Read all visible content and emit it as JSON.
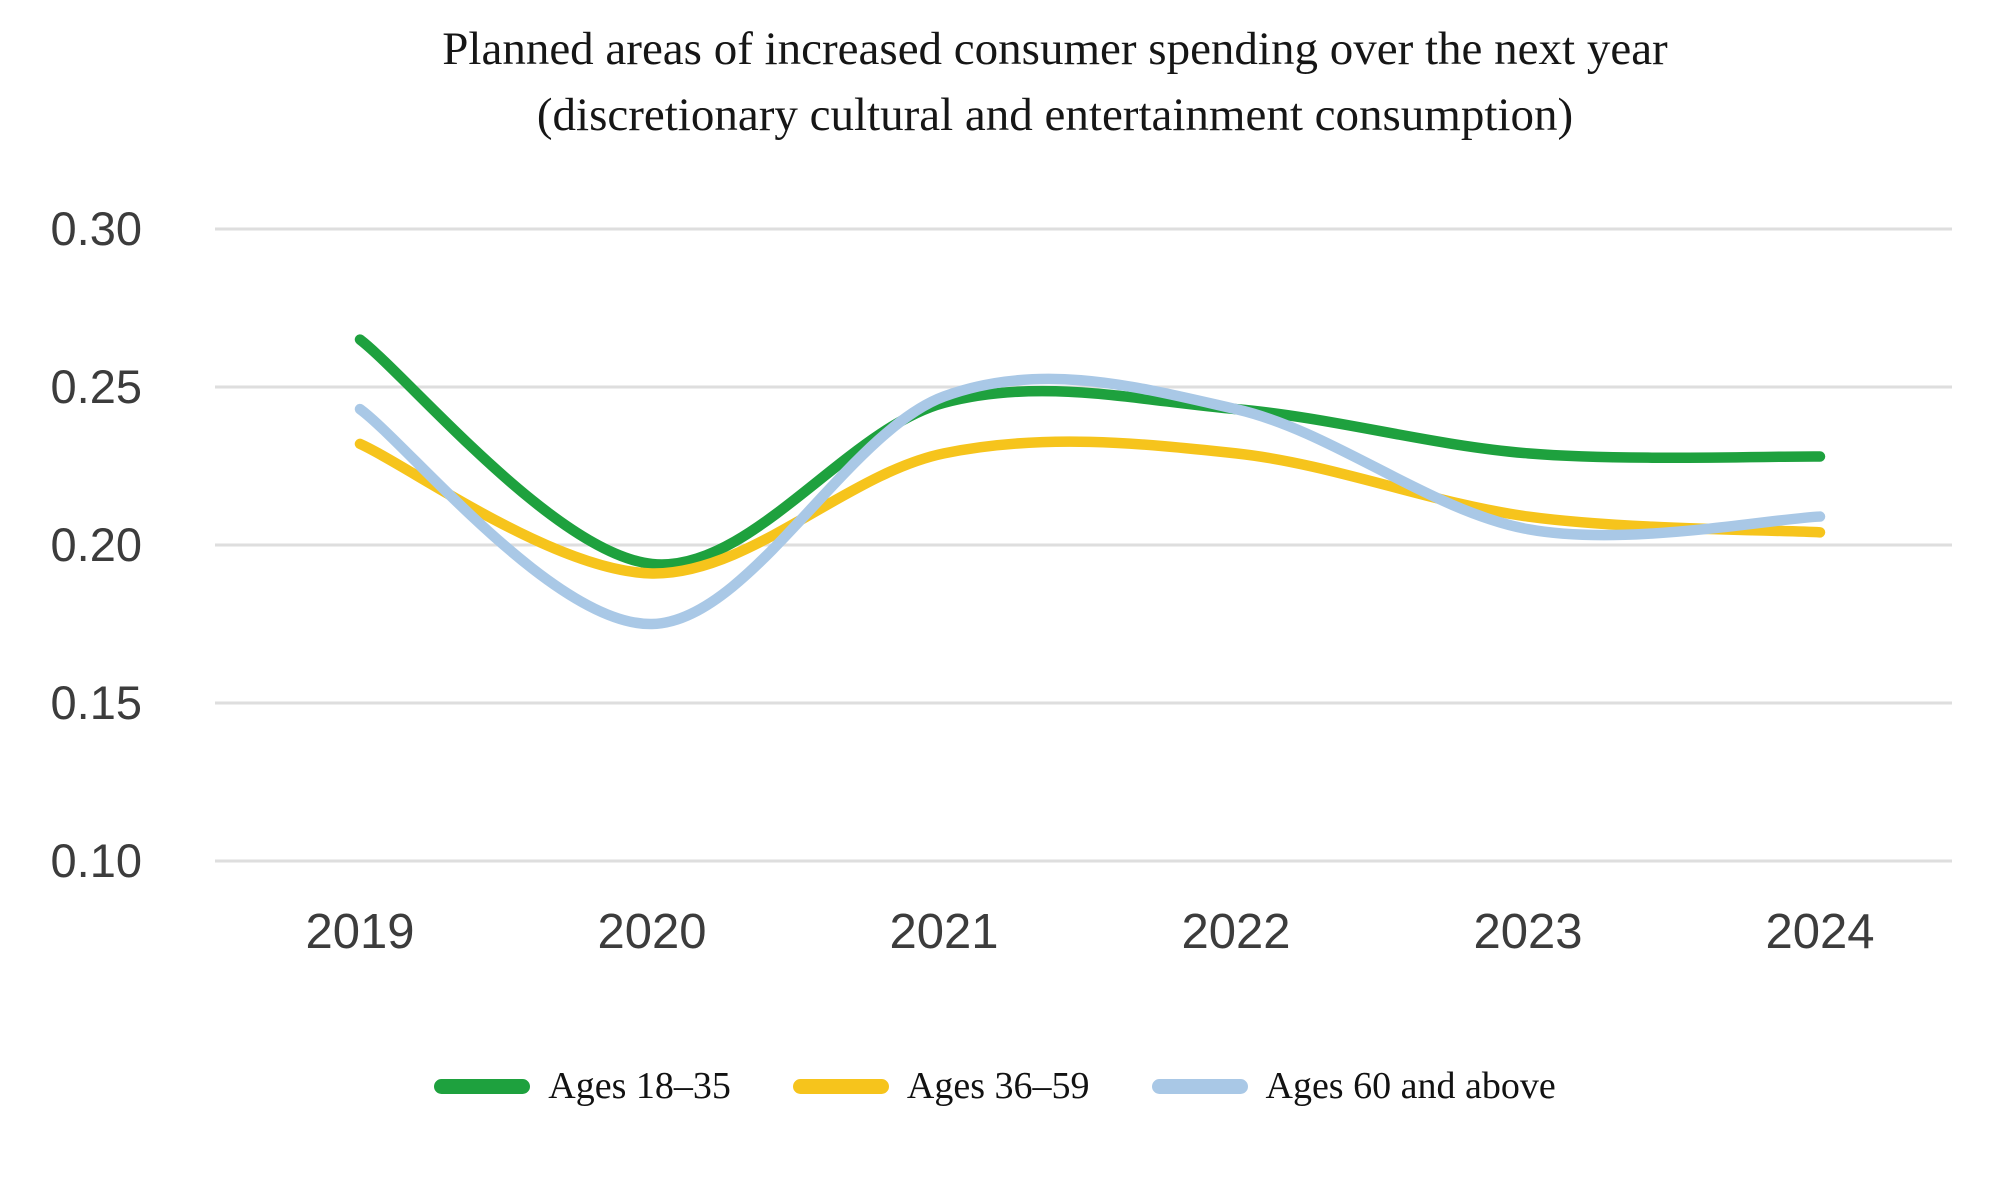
{
  "title": {
    "line1": "Planned areas of increased consumer spending over the next year",
    "line2": "(discretionary cultural and entertainment consumption)"
  },
  "colors": {
    "green": "#1ea13e",
    "yellow": "#f6c41c",
    "blue": "#a9c8e6",
    "grid": "#dedede",
    "axis_text": "#3c3c3c",
    "title_text": "#161616"
  },
  "chart_data": {
    "type": "line",
    "x": [
      2019,
      2020,
      2021,
      2022,
      2023,
      2024
    ],
    "series": [
      {
        "name": "Ages 18–35",
        "color": "green",
        "values": [
          0.265,
          0.194,
          0.245,
          0.243,
          0.229,
          0.228
        ]
      },
      {
        "name": "Ages 36–59",
        "color": "yellow",
        "values": [
          0.232,
          0.191,
          0.229,
          0.229,
          0.209,
          0.204
        ]
      },
      {
        "name": "Ages 60 and above",
        "color": "blue",
        "values": [
          0.243,
          0.175,
          0.247,
          0.243,
          0.205,
          0.209
        ]
      }
    ],
    "yticks": [
      "0.30",
      "0.25",
      "0.20",
      "0.15",
      "0.10"
    ],
    "ytick_values": [
      0.3,
      0.25,
      0.2,
      0.15,
      0.1
    ],
    "xticks": [
      "2019",
      "2020",
      "2021",
      "2022",
      "2023",
      "2024"
    ],
    "ylim": [
      0.1,
      0.3
    ],
    "grid": true,
    "smooth": true,
    "legend_position": "bottom"
  },
  "legend": {
    "items": [
      {
        "label": "Ages 18–35",
        "color": "green"
      },
      {
        "label": "Ages 36–59",
        "color": "yellow"
      },
      {
        "label": "Ages 60 and above",
        "color": "blue"
      }
    ]
  }
}
